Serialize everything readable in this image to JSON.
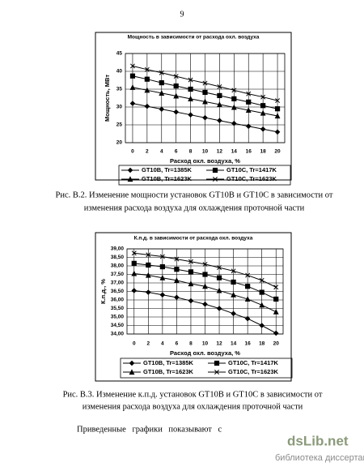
{
  "page_number": "9",
  "chart_data": [
    {
      "type": "line",
      "title": "Мощность в зависимости от расхода охл. воздуха",
      "x_label": "Расход охл. воздуха, %",
      "y_label": "Мощность, МВт",
      "x": [
        0,
        2,
        4,
        6,
        8,
        10,
        12,
        14,
        16,
        18,
        20
      ],
      "xlim": [
        -1,
        21
      ],
      "xticks": [
        0,
        2,
        4,
        6,
        8,
        10,
        12,
        14,
        16,
        18,
        20
      ],
      "ylim": [
        20,
        45
      ],
      "yticks": [
        20,
        25,
        30,
        35,
        40,
        45
      ],
      "grid": true,
      "series": [
        {
          "name": "GT10B, Tr=1385K",
          "color": "#000000",
          "marker": "diamond",
          "values": [
            31,
            30.2,
            29.4,
            28.6,
            27.8,
            27,
            26.2,
            25.4,
            24.6,
            23.8,
            23
          ]
        },
        {
          "name": "GT10C, Tr=1417K",
          "color": "#000000",
          "marker": "square",
          "values": [
            38.7,
            37.8,
            36.8,
            35.9,
            35,
            34.1,
            33.2,
            32.3,
            31.4,
            30.4,
            29.5
          ]
        },
        {
          "name": "GT10B, Tr=1623K",
          "color": "#000000",
          "marker": "triangle",
          "values": [
            35.5,
            34.7,
            33.9,
            33.1,
            32.3,
            31.5,
            30.7,
            29.9,
            29.1,
            28.3,
            27.5
          ]
        },
        {
          "name": "GT10C, Tr=1623K",
          "color": "#000000",
          "marker": "x",
          "values": [
            41.5,
            40.5,
            39.6,
            38.6,
            37.6,
            36.7,
            35.7,
            34.7,
            33.7,
            32.8,
            31.8
          ]
        }
      ]
    },
    {
      "type": "line",
      "title": "К.п.д. в зависимости от расхода охл. воздуха",
      "x_label": "Расход охл. воздуха, %",
      "y_label": "К.п.д., %",
      "x": [
        0,
        2,
        4,
        6,
        8,
        10,
        12,
        14,
        16,
        18,
        20
      ],
      "xlim": [
        -1,
        21
      ],
      "xticks": [
        0,
        2,
        4,
        6,
        8,
        10,
        12,
        14,
        16,
        18,
        20
      ],
      "ylim": [
        34,
        39
      ],
      "yticks": [
        {
          "value": 34,
          "label": "34,00"
        },
        {
          "value": 34.5,
          "label": "34,50"
        },
        {
          "value": 35,
          "label": "35,00"
        },
        {
          "value": 35.5,
          "label": "35,50"
        },
        {
          "value": 36,
          "label": "36,00"
        },
        {
          "value": 36.5,
          "label": "36,50"
        },
        {
          "value": 37,
          "label": "37,00"
        },
        {
          "value": 37.5,
          "label": "37,50"
        },
        {
          "value": 38,
          "label": "38,00"
        },
        {
          "value": 38.5,
          "label": "38,50"
        },
        {
          "value": 39,
          "label": "39,00"
        }
      ],
      "grid": true,
      "series": [
        {
          "name": "GT10B, Tr=1385K",
          "color": "#000000",
          "marker": "diamond",
          "values": [
            36.55,
            36.45,
            36.3,
            36.15,
            35.95,
            35.75,
            35.5,
            35.2,
            34.9,
            34.5,
            34.05
          ]
        },
        {
          "name": "GT10C, Tr=1417K",
          "color": "#000000",
          "marker": "square",
          "values": [
            38.15,
            38.05,
            37.95,
            37.8,
            37.65,
            37.5,
            37.3,
            37.05,
            36.8,
            36.45,
            36.05
          ]
        },
        {
          "name": "GT10B, Tr=1623K",
          "color": "#000000",
          "marker": "triangle",
          "values": [
            37.55,
            37.45,
            37.3,
            37.15,
            36.95,
            36.8,
            36.55,
            36.3,
            36.05,
            35.7,
            35.3
          ]
        },
        {
          "name": "GT10C, Tr=1623K",
          "color": "#000000",
          "marker": "x",
          "values": [
            38.75,
            38.65,
            38.55,
            38.4,
            38.25,
            38.1,
            37.9,
            37.7,
            37.45,
            37.15,
            36.75
          ]
        }
      ]
    }
  ],
  "captions": [
    [
      "Рис. В.2.  Изменение мощности установок GT10B и GT10C в зависимости от",
      "изменения расхода воздуха для охлаждения проточной части"
    ],
    [
      "Рис. В.3. Изменение к.п.д. установок GT10B и GT10C в зависимости от",
      "изменения расхода воздуха для охлаждения проточной части"
    ]
  ],
  "body_text": "Приведенные графики показывают с",
  "watermark": {
    "logo": "dsLib.net",
    "tagline": "библиотека диссертаций"
  }
}
